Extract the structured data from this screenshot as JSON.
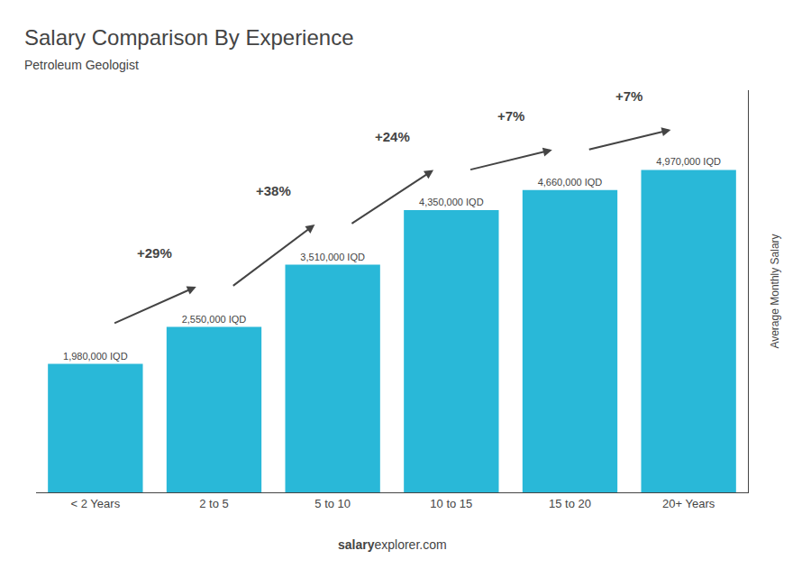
{
  "chart_data": {
    "type": "bar",
    "title": "Salary Comparison By Experience",
    "subtitle": "Petroleum Geologist",
    "categories": [
      "< 2 Years",
      "2 to 5",
      "5 to 10",
      "10 to 15",
      "15 to 20",
      "20+ Years"
    ],
    "values": [
      1980000,
      2550000,
      3510000,
      4350000,
      4660000,
      4970000
    ],
    "value_labels": [
      "1,980,000 IQD",
      "2,550,000 IQD",
      "3,510,000 IQD",
      "4,350,000 IQD",
      "4,660,000 IQD",
      "4,970,000 IQD"
    ],
    "data_labels": true,
    "color": "#29b8d8",
    "ylabel": "Average Monthly Salary",
    "ylim": [
      0,
      6200000
    ],
    "tick_labels": "x",
    "grid": false,
    "annotations": [
      "+29%",
      "+38%",
      "+24%",
      "+7%",
      "+7%"
    ],
    "footer": [
      "salary",
      "explorer.com"
    ]
  }
}
